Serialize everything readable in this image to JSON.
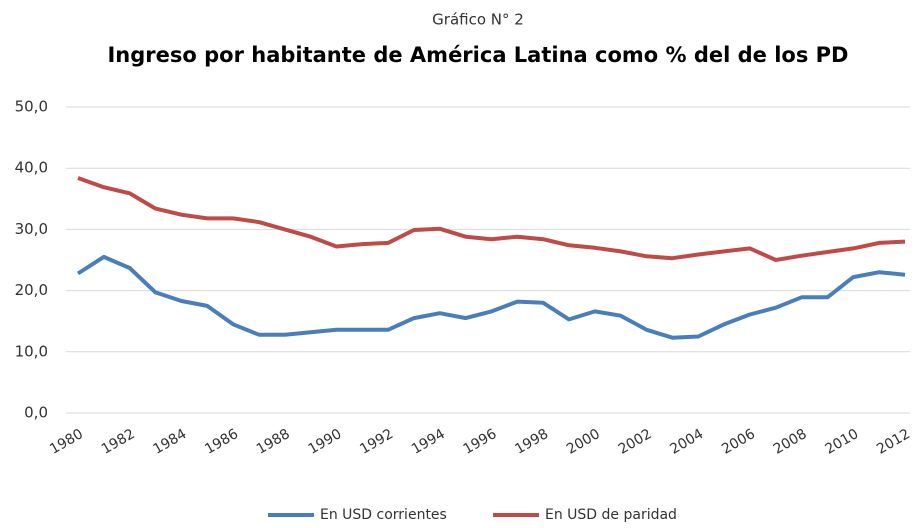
{
  "chart_data": {
    "type": "line",
    "supertitle": "Gráfico N° 2",
    "title": "Ingreso por habitante de América Latina como % del de los PD",
    "x": [
      1980,
      1981,
      1982,
      1983,
      1984,
      1985,
      1986,
      1987,
      1988,
      1989,
      1990,
      1991,
      1992,
      1993,
      1994,
      1995,
      1996,
      1997,
      1998,
      1999,
      2000,
      2001,
      2002,
      2003,
      2004,
      2005,
      2006,
      2007,
      2008,
      2009,
      2010,
      2011,
      2012
    ],
    "xlim": [
      1980,
      2012
    ],
    "xticks": [
      1980,
      1982,
      1984,
      1986,
      1988,
      1990,
      1992,
      1994,
      1996,
      1998,
      2000,
      2002,
      2004,
      2006,
      2008,
      2010,
      2012
    ],
    "ylim": [
      0,
      50
    ],
    "yticks": [
      {
        "value": 0,
        "label": "0,0"
      },
      {
        "value": 10,
        "label": "10,0"
      },
      {
        "value": 20,
        "label": "20,0"
      },
      {
        "value": 30,
        "label": "30,0"
      },
      {
        "value": 40,
        "label": "40,0"
      },
      {
        "value": 50,
        "label": "50,0"
      }
    ],
    "grid": true,
    "legend": "bottom",
    "series": [
      {
        "name": "En USD corrientes",
        "color": "#4a7ebb",
        "values": [
          22.8,
          25.5,
          23.7,
          19.7,
          18.3,
          17.5,
          14.5,
          12.8,
          12.8,
          13.2,
          13.6,
          13.6,
          13.6,
          15.5,
          16.3,
          15.5,
          16.6,
          18.2,
          18.0,
          15.3,
          16.6,
          15.9,
          13.6,
          12.3,
          12.5,
          14.5,
          16.1,
          17.2,
          18.9,
          18.9,
          22.2,
          23.0,
          22.6
        ]
      },
      {
        "name": "En USD de paridad",
        "color": "#be4b48",
        "values": [
          38.4,
          36.9,
          35.9,
          33.4,
          32.4,
          31.8,
          31.8,
          31.2,
          30.0,
          28.8,
          27.2,
          27.6,
          27.8,
          29.9,
          30.1,
          28.8,
          28.4,
          28.8,
          28.4,
          27.4,
          27.0,
          26.4,
          25.6,
          25.3,
          25.9,
          26.4,
          26.9,
          25.0,
          25.7,
          26.3,
          26.9,
          27.8,
          28.0
        ]
      }
    ]
  }
}
